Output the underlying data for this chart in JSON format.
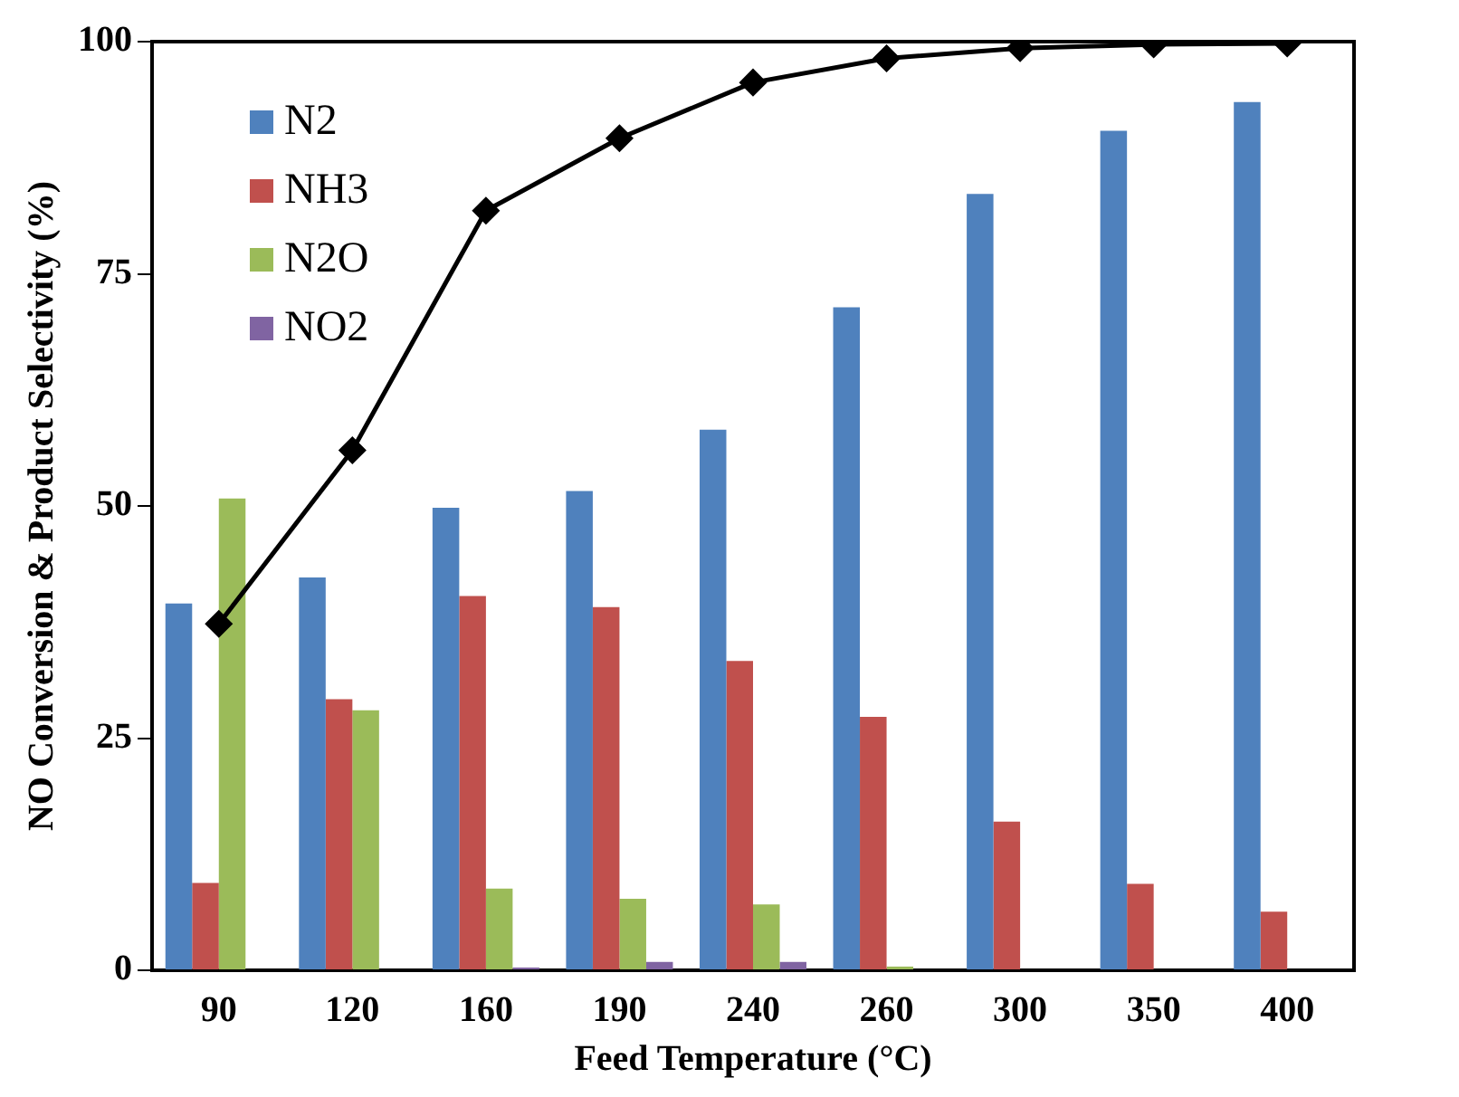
{
  "chart_data": {
    "type": "bar",
    "xlabel": "Feed Temperature (°C)",
    "ylabel": "NO Conversion & Product Selectivity (%)",
    "categories": [
      "90",
      "120",
      "160",
      "190",
      "240",
      "260",
      "300",
      "350",
      "400"
    ],
    "series": [
      {
        "name": "N2",
        "color": "#4f81bd",
        "values": [
          39.5,
          42.3,
          49.8,
          51.6,
          58.2,
          71.4,
          83.6,
          90.4,
          93.5
        ]
      },
      {
        "name": "NH3",
        "color": "#c0504d",
        "values": [
          9.4,
          29.2,
          40.3,
          39.1,
          33.3,
          27.3,
          16.0,
          9.3,
          6.3
        ]
      },
      {
        "name": "N2O",
        "color": "#9bbb59",
        "values": [
          50.8,
          28.0,
          8.8,
          7.7,
          7.1,
          0.4,
          0,
          0,
          0
        ]
      },
      {
        "name": "NO2",
        "color": "#8064a2",
        "values": [
          0,
          0,
          0.3,
          0.9,
          0.9,
          0,
          0,
          0,
          0
        ]
      },
      {
        "type": "line",
        "color": "#000000",
        "values": [
          37.3,
          56.0,
          81.8,
          89.6,
          95.6,
          98.2,
          99.3,
          99.7,
          99.8
        ]
      }
    ],
    "ylim": [
      0,
      100
    ],
    "yticks": [
      0,
      25,
      50,
      75,
      100
    ],
    "grid": false,
    "legend": "top left",
    "marker": "diamond",
    "line_style": "solid"
  }
}
